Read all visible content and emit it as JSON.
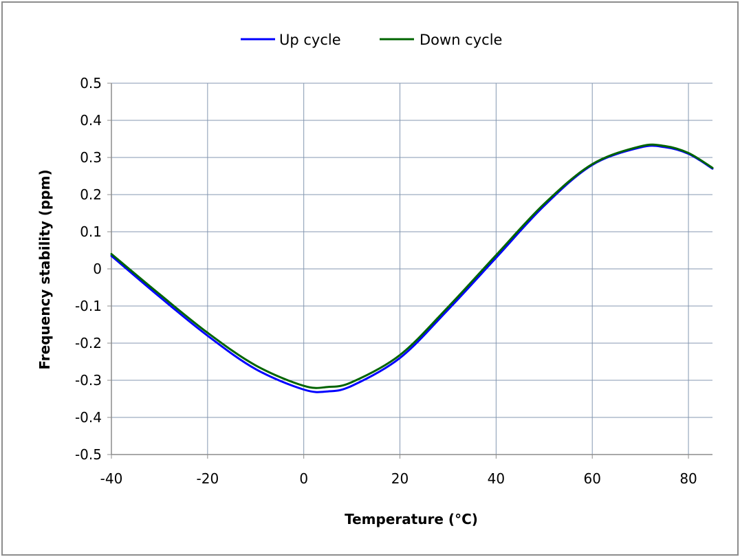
{
  "chart_data": {
    "type": "line",
    "title": "",
    "xlabel": "Temperature (°C)",
    "ylabel": "Frequency stability (ppm)",
    "xlim": [
      -40,
      85
    ],
    "ylim": [
      -0.5,
      0.5
    ],
    "x_ticks": [
      "-40",
      "-20",
      "0",
      "20",
      "40",
      "60",
      "80"
    ],
    "y_ticks": [
      "0.5",
      "0.4",
      "0.3",
      "0.2",
      "0.1",
      "0",
      "-0.1",
      "-0.2",
      "-0.3",
      "-0.4",
      "-0.5"
    ],
    "grid": true,
    "legend_position": "top-center",
    "series": [
      {
        "name": "Up cycle",
        "color": "#0000ff",
        "x": [
          -40,
          -30,
          -20,
          -10,
          0,
          5,
          10,
          20,
          30,
          40,
          50,
          60,
          70,
          75,
          80,
          85
        ],
        "y": [
          0.035,
          -0.075,
          -0.18,
          -0.27,
          -0.325,
          -0.33,
          -0.315,
          -0.24,
          -0.11,
          0.03,
          0.17,
          0.28,
          0.327,
          0.328,
          0.31,
          0.27
        ]
      },
      {
        "name": "Down cycle",
        "color": "#006400",
        "x": [
          -40,
          -30,
          -20,
          -10,
          0,
          5,
          10,
          20,
          30,
          40,
          50,
          60,
          70,
          75,
          80,
          85
        ],
        "y": [
          0.04,
          -0.068,
          -0.172,
          -0.26,
          -0.315,
          -0.318,
          -0.305,
          -0.232,
          -0.103,
          0.037,
          0.175,
          0.282,
          0.33,
          0.331,
          0.312,
          0.272
        ]
      }
    ]
  }
}
